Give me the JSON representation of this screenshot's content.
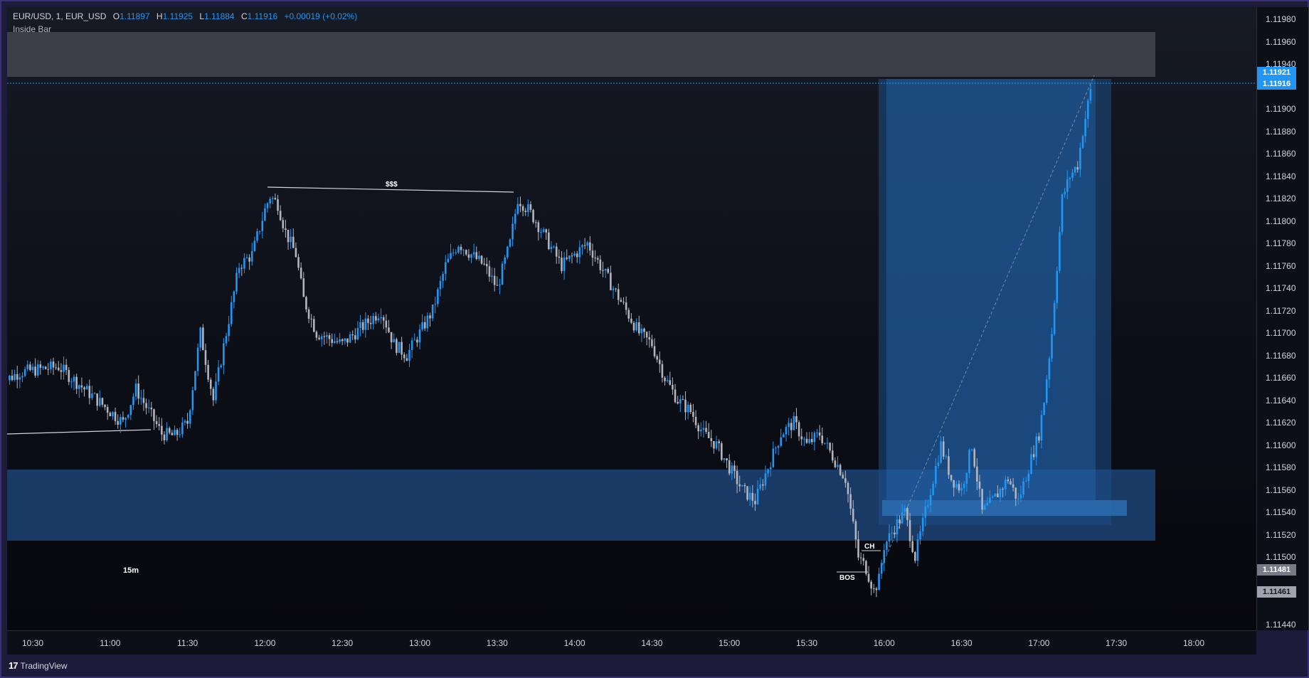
{
  "legend": {
    "symbol": "EUR/USD, 1, EUR_USD",
    "open_key": "O",
    "open": "1.11897",
    "high_key": "H",
    "high": "1.11925",
    "low_key": "L",
    "low": "1.11884",
    "close_key": "C",
    "close": "1.11916",
    "change": "+0.00019 (+0.02%)"
  },
  "indicator": "Inside Bar",
  "annotations": {
    "liquidity": "$$$",
    "zone_15m": "15m",
    "choch": "CH",
    "bos": "BOS"
  },
  "price_scale": {
    "ticks": [
      "1.11980",
      "1.11960",
      "1.11940",
      "1.11900",
      "1.11880",
      "1.11860",
      "1.11840",
      "1.11820",
      "1.11800",
      "1.11780",
      "1.11760",
      "1.11740",
      "1.11720",
      "1.11700",
      "1.11680",
      "1.11660",
      "1.11640",
      "1.11620",
      "1.11600",
      "1.11580",
      "1.11560",
      "1.11540",
      "1.11520",
      "1.11500",
      "1.11440"
    ],
    "tag_target": "1.11921",
    "tag_last": "1.11916",
    "tag_stop": "1.11481",
    "tag_entry": "1.11461"
  },
  "time_scale": {
    "ticks": [
      "10:30",
      "11:00",
      "11:30",
      "12:00",
      "12:30",
      "13:00",
      "13:30",
      "14:00",
      "14:30",
      "15:00",
      "15:30",
      "16:00",
      "16:30",
      "17:00",
      "17:30",
      "18:00"
    ]
  },
  "footer": {
    "logo_mark": "17",
    "brand": "TradingView"
  },
  "colors": {
    "up": "#2196f3",
    "down": "#b2b5be",
    "zone": "#1b3d6b",
    "supply": "#434651",
    "target_tag": "#2196f3",
    "last_tag": "#2196f3",
    "gray_tag": "#787b86"
  },
  "chart_data": {
    "type": "candlestick",
    "symbol": "EUR/USD",
    "interval": "1",
    "x_range": [
      "10:30",
      "18:00"
    ],
    "ylim": [
      1.1143,
      1.1199
    ],
    "path": [
      [
        "10:17",
        1.11655
      ],
      [
        "10:25",
        1.11665
      ],
      [
        "10:40",
        1.1167
      ],
      [
        "10:50",
        1.1165
      ],
      [
        "11:00",
        1.1163
      ],
      [
        "11:05",
        1.1162
      ],
      [
        "11:10",
        1.1165
      ],
      [
        "11:15",
        1.1163
      ],
      [
        "11:20",
        1.1161
      ],
      [
        "11:25",
        1.11608
      ],
      [
        "11:30",
        1.1162
      ],
      [
        "11:35",
        1.117
      ],
      [
        "11:40",
        1.1164
      ],
      [
        "11:45",
        1.117
      ],
      [
        "11:50",
        1.1176
      ],
      [
        "11:55",
        1.1177
      ],
      [
        "12:00",
        1.1181
      ],
      [
        "12:02",
        1.11822
      ],
      [
        "12:05",
        1.11815
      ],
      [
        "12:08",
        1.1179
      ],
      [
        "12:12",
        1.1177
      ],
      [
        "12:15",
        1.1173
      ],
      [
        "12:20",
        1.117
      ],
      [
        "12:30",
        1.1169
      ],
      [
        "12:40",
        1.1171
      ],
      [
        "12:45",
        1.1172
      ],
      [
        "12:50",
        1.1169
      ],
      [
        "12:55",
        1.1168
      ],
      [
        "13:00",
        1.117
      ],
      [
        "13:05",
        1.1172
      ],
      [
        "13:10",
        1.1176
      ],
      [
        "13:15",
        1.1178
      ],
      [
        "13:20",
        1.1177
      ],
      [
        "13:25",
        1.1176
      ],
      [
        "13:30",
        1.1174
      ],
      [
        "13:35",
        1.1178
      ],
      [
        "13:38",
        1.1182
      ],
      [
        "13:42",
        1.1181
      ],
      [
        "13:45",
        1.118
      ],
      [
        "13:50",
        1.1178
      ],
      [
        "13:55",
        1.1176
      ],
      [
        "14:00",
        1.1177
      ],
      [
        "14:05",
        1.1178
      ],
      [
        "14:10",
        1.1176
      ],
      [
        "14:15",
        1.1174
      ],
      [
        "14:20",
        1.1172
      ],
      [
        "14:25",
        1.117
      ],
      [
        "14:30",
        1.1169
      ],
      [
        "14:35",
        1.1166
      ],
      [
        "14:40",
        1.1164
      ],
      [
        "14:45",
        1.1163
      ],
      [
        "14:50",
        1.1161
      ],
      [
        "14:55",
        1.116
      ],
      [
        "15:00",
        1.1158
      ],
      [
        "15:05",
        1.1156
      ],
      [
        "15:10",
        1.1155
      ],
      [
        "15:15",
        1.1158
      ],
      [
        "15:20",
        1.1161
      ],
      [
        "15:25",
        1.1162
      ],
      [
        "15:30",
        1.116
      ],
      [
        "15:35",
        1.1161
      ],
      [
        "15:40",
        1.1159
      ],
      [
        "15:45",
        1.1157
      ],
      [
        "15:50",
        1.115
      ],
      [
        "15:53",
        1.1149
      ],
      [
        "15:56",
        1.1147
      ],
      [
        "15:58",
        1.1148
      ],
      [
        "16:00",
        1.1151
      ],
      [
        "16:05",
        1.1153
      ],
      [
        "16:08",
        1.1154
      ],
      [
        "16:12",
        1.115
      ],
      [
        "16:18",
        1.1156
      ],
      [
        "16:22",
        1.116
      ],
      [
        "16:26",
        1.1157
      ],
      [
        "16:30",
        1.1156
      ],
      [
        "16:34",
        1.116
      ],
      [
        "16:38",
        1.1154
      ],
      [
        "16:42",
        1.1155
      ],
      [
        "16:48",
        1.1157
      ],
      [
        "16:52",
        1.1155
      ],
      [
        "16:56",
        1.1158
      ],
      [
        "17:00",
        1.1161
      ],
      [
        "17:02",
        1.1164
      ],
      [
        "17:05",
        1.117
      ],
      [
        "17:07",
        1.1176
      ],
      [
        "17:09",
        1.1182
      ],
      [
        "17:12",
        1.1184
      ],
      [
        "17:15",
        1.1185
      ],
      [
        "17:17",
        1.1188
      ],
      [
        "17:20",
        1.11916
      ]
    ]
  }
}
